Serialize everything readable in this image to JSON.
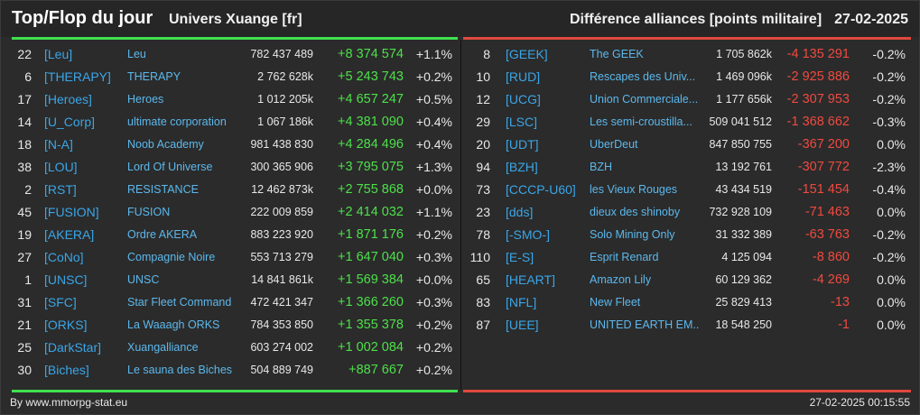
{
  "header": {
    "title": "Top/Flop du jour",
    "subtitle": "Univers Xuange [fr]",
    "right_label": "Différence alliances [points militaire]",
    "date": "27-02-2025"
  },
  "colors": {
    "positive": "#4de04a",
    "negative": "#ef4a40",
    "tag": "#3aa6e8",
    "top_bar": "#3fe04f",
    "flop_bar": "#e0483f"
  },
  "top": [
    {
      "rank": "22",
      "tag": "[Leu]",
      "name": "Leu",
      "points": "782 437 489",
      "diff": "+8 374 574",
      "pct": "+1.1%"
    },
    {
      "rank": "6",
      "tag": "[THERAPY]",
      "name": "THERAPY",
      "points": "2 762 628k",
      "diff": "+5 243 743",
      "pct": "+0.2%"
    },
    {
      "rank": "17",
      "tag": "[Heroes]",
      "name": "Heroes",
      "points": "1 012 205k",
      "diff": "+4 657 247",
      "pct": "+0.5%"
    },
    {
      "rank": "14",
      "tag": "[U_Corp]",
      "name": "ultimate corporation",
      "points": "1 067 186k",
      "diff": "+4 381 090",
      "pct": "+0.4%"
    },
    {
      "rank": "18",
      "tag": "[N-A]",
      "name": "Noob Academy",
      "points": "981 438 830",
      "diff": "+4 284 496",
      "pct": "+0.4%"
    },
    {
      "rank": "38",
      "tag": "[LOU]",
      "name": "Lord Of Universe",
      "points": "300 365 906",
      "diff": "+3 795 075",
      "pct": "+1.3%"
    },
    {
      "rank": "2",
      "tag": "[RST]",
      "name": "RESISTANCE",
      "points": "12 462 873k",
      "diff": "+2 755 868",
      "pct": "+0.0%"
    },
    {
      "rank": "45",
      "tag": "[FUSION]",
      "name": "FUSION",
      "points": "222 009 859",
      "diff": "+2 414 032",
      "pct": "+1.1%"
    },
    {
      "rank": "19",
      "tag": "[AKERA]",
      "name": "Ordre AKERA",
      "points": "883 223 920",
      "diff": "+1 871 176",
      "pct": "+0.2%"
    },
    {
      "rank": "27",
      "tag": "[CoNo]",
      "name": "Compagnie Noire",
      "points": "553 713 279",
      "diff": "+1 647 040",
      "pct": "+0.3%"
    },
    {
      "rank": "1",
      "tag": "[UNSC]",
      "name": "UNSC",
      "points": "14 841 861k",
      "diff": "+1 569 384",
      "pct": "+0.0%"
    },
    {
      "rank": "31",
      "tag": "[SFC]",
      "name": "Star Fleet Command",
      "points": "472 421 347",
      "diff": "+1 366 260",
      "pct": "+0.3%"
    },
    {
      "rank": "21",
      "tag": "[ORKS]",
      "name": "La Waaagh ORKS",
      "points": "784 353 850",
      "diff": "+1 355 378",
      "pct": "+0.2%"
    },
    {
      "rank": "25",
      "tag": "[DarkStar]",
      "name": "Xuangalliance",
      "points": "603 274 002",
      "diff": "+1 002 084",
      "pct": "+0.2%"
    },
    {
      "rank": "30",
      "tag": "[Biches]",
      "name": "Le sauna des Biches",
      "points": "504 889 749",
      "diff": "+887 667",
      "pct": "+0.2%"
    }
  ],
  "flop": [
    {
      "rank": "8",
      "tag": "[GEEK]",
      "name": "The GEEK",
      "points": "1 705 862k",
      "diff": "-4 135 291",
      "pct": "-0.2%"
    },
    {
      "rank": "10",
      "tag": "[RUD]",
      "name": "Rescapes des Univ...",
      "points": "1 469 096k",
      "diff": "-2 925 886",
      "pct": "-0.2%"
    },
    {
      "rank": "12",
      "tag": "[UCG]",
      "name": "Union Commerciale...",
      "points": "1 177 656k",
      "diff": "-2 307 953",
      "pct": "-0.2%"
    },
    {
      "rank": "29",
      "tag": "[LSC]",
      "name": "Les semi-croustilla...",
      "points": "509 041 512",
      "diff": "-1 368 662",
      "pct": "-0.3%"
    },
    {
      "rank": "20",
      "tag": "[UDT]",
      "name": "UberDeut",
      "points": "847 850 755",
      "diff": "-367 200",
      "pct": "0.0%"
    },
    {
      "rank": "94",
      "tag": "[BZH]",
      "name": "BZH",
      "points": "13 192 761",
      "diff": "-307 772",
      "pct": "-2.3%"
    },
    {
      "rank": "73",
      "tag": "[CCCP-U60]",
      "name": "les Vieux Rouges",
      "points": "43 434 519",
      "diff": "-151 454",
      "pct": "-0.4%"
    },
    {
      "rank": "23",
      "tag": "[dds]",
      "name": "dieux des shinoby",
      "points": "732 928 109",
      "diff": "-71 463",
      "pct": "0.0%"
    },
    {
      "rank": "78",
      "tag": "[-SMO-]",
      "name": "Solo Mining Only",
      "points": "31 332 389",
      "diff": "-63 763",
      "pct": "-0.2%"
    },
    {
      "rank": "110",
      "tag": "[E-S]",
      "name": "Esprit Renard",
      "points": "4 125 094",
      "diff": "-8 860",
      "pct": "-0.2%"
    },
    {
      "rank": "65",
      "tag": "[HEART]",
      "name": "Amazon Lily",
      "points": "60 129 362",
      "diff": "-4 269",
      "pct": "0.0%"
    },
    {
      "rank": "83",
      "tag": "[NFL]",
      "name": "New Fleet",
      "points": "25 829 413",
      "diff": "-13",
      "pct": "0.0%"
    },
    {
      "rank": "87",
      "tag": "[UEE]",
      "name": "UNITED EARTH EM...",
      "points": "18 548 250",
      "diff": "-1",
      "pct": "0.0%"
    }
  ],
  "footer": {
    "source": "By www.mmorpg-stat.eu",
    "timestamp": "27-02-2025 00:15:55"
  }
}
